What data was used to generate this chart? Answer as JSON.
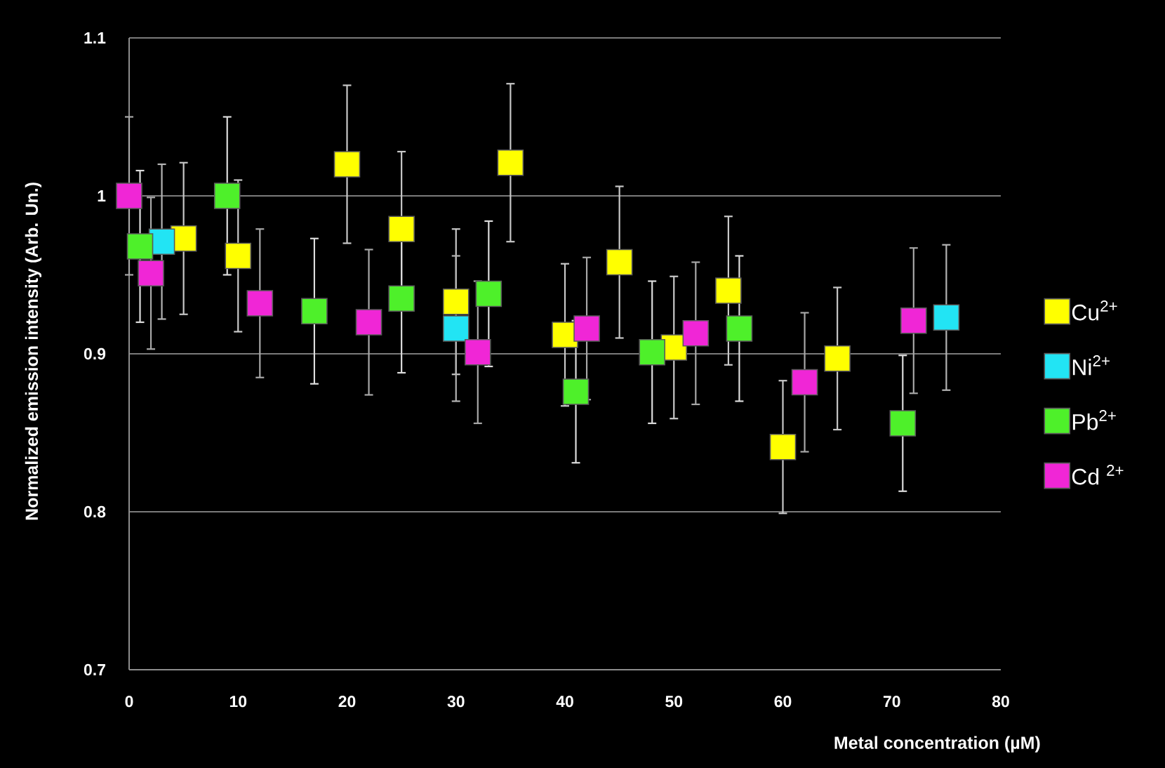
{
  "chart_data": {
    "type": "scatter",
    "xlabel": "Metal concentration (µM)",
    "ylabel": "Normalized emission intensity (Arb. Un.)",
    "xlim": [
      0,
      80
    ],
    "ylim": [
      0.7,
      1.1
    ],
    "xticks": [
      0,
      10,
      20,
      30,
      40,
      50,
      60,
      70,
      80
    ],
    "yticks": [
      0.7,
      0.8,
      0.9,
      1,
      1.1
    ],
    "grid": "y",
    "legend": "right",
    "marker": "square",
    "series": [
      {
        "name": "Cu$^{2+}$",
        "color": "#ffff00",
        "x": [
          5,
          10,
          20,
          25,
          30,
          35,
          40,
          45,
          50,
          55,
          60,
          65
        ],
        "values": [
          0.973,
          0.962,
          1.02,
          0.979,
          0.933,
          1.021,
          0.912,
          0.958,
          0.904,
          0.94,
          0.841,
          0.897
        ],
        "errors": [
          0.048,
          0.048,
          0.05,
          0.049,
          0.046,
          0.05,
          0.045,
          0.048,
          0.045,
          0.047,
          0.042,
          0.045
        ]
      },
      {
        "name": "Ni$^{2+}$",
        "color": "#22e4f4",
        "x": [
          3,
          30,
          75
        ],
        "values": [
          0.971,
          0.916,
          0.923
        ],
        "errors": [
          0.049,
          0.046,
          0.046
        ]
      },
      {
        "name": "Pb$^{2+}$",
        "color": "#4ef02a",
        "x": [
          1,
          9,
          17,
          25,
          33,
          41,
          48,
          56,
          71
        ],
        "values": [
          0.968,
          1.0,
          0.927,
          0.935,
          0.938,
          0.876,
          0.901,
          0.916,
          0.856
        ],
        "errors": [
          0.048,
          0.05,
          0.046,
          0.047,
          0.046,
          0.045,
          0.045,
          0.046,
          0.043
        ]
      },
      {
        "name": "Cd $^{2+}$",
        "color": "#f026d6",
        "x": [
          0,
          2,
          12,
          22,
          32,
          42,
          52,
          62,
          72
        ],
        "values": [
          1.0,
          0.951,
          0.932,
          0.92,
          0.901,
          0.916,
          0.913,
          0.882,
          0.921
        ],
        "errors": [
          0.05,
          0.048,
          0.047,
          0.046,
          0.045,
          0.045,
          0.045,
          0.044,
          0.046
        ]
      }
    ]
  }
}
